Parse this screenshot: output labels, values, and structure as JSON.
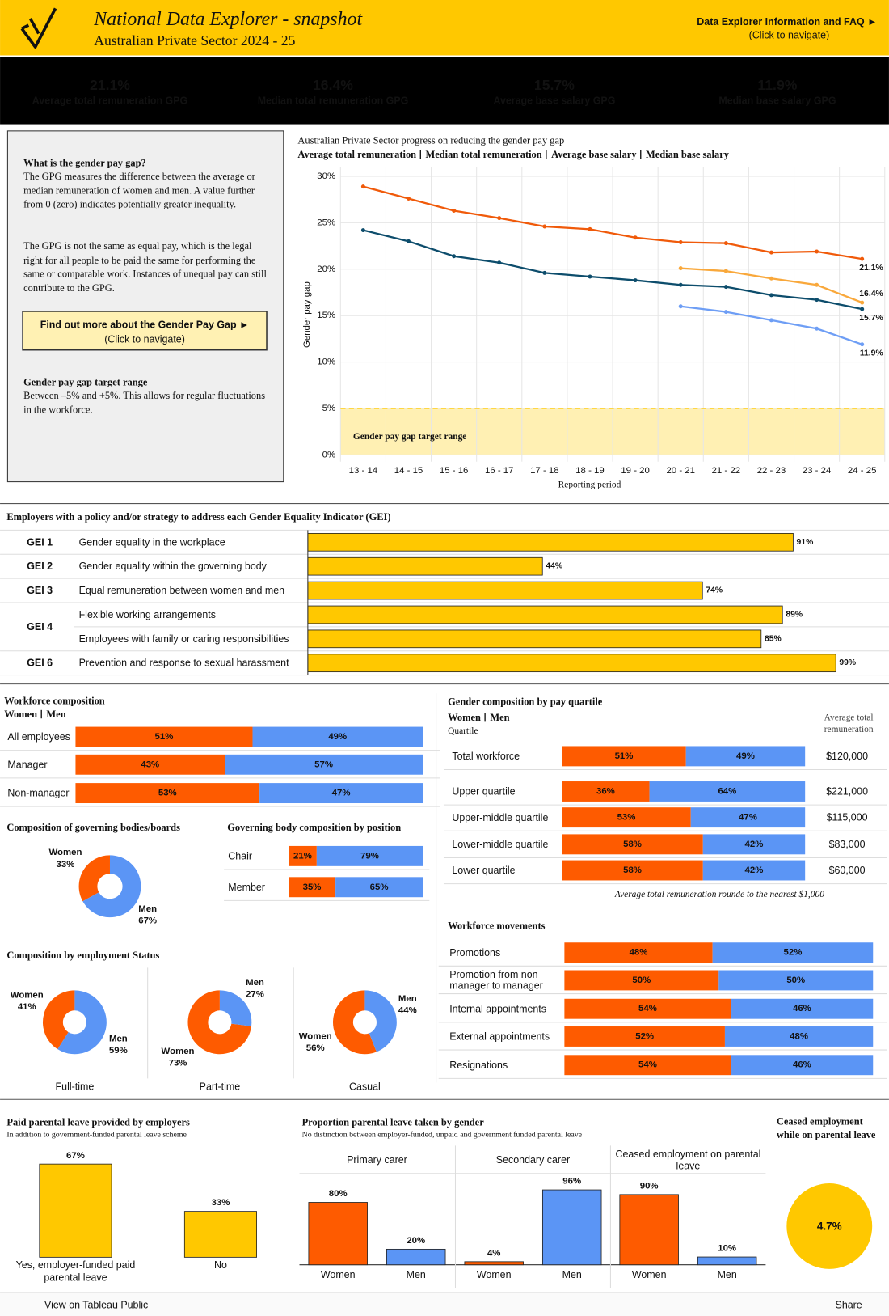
{
  "header": {
    "title": "National Data Explorer - snapshot",
    "subtitle": "Australian Private Sector 2024 - 25",
    "link": "Data Explorer Information and FAQ ►",
    "link_hint": "(Click to navigate)"
  },
  "kpis": [
    {
      "value": "21.1%",
      "label": "Average total remuneration GPG"
    },
    {
      "value": "16.4%",
      "label": "Median total remuneration GPG"
    },
    {
      "value": "15.7%",
      "label": "Average base salary GPG"
    },
    {
      "value": "11.9%",
      "label": "Median base salary GPG"
    }
  ],
  "info": {
    "heading": "What is the gender pay gap?",
    "paragraphs": [
      "The GPG measures the difference between the average or median remuneration of women and men. A value further from 0 (zero) indicates potentially greater inequality.",
      "The GPG is not the same as equal pay, which is the legal right for all people to be paid the same for performing the same or comparable work. Instances of unequal pay can still contribute to the GPG."
    ],
    "button": "Find out more about the Gender Pay Gap ►",
    "button_hint": "(Click to navigate)",
    "target_heading": "Gender pay gap target range",
    "target_text": "Between –5% and +5%. This allows for regular fluctuations in the workforce."
  },
  "chart_data": [
    {
      "type": "line",
      "title": "Australian Private Sector progress on reducing the gender pay gap",
      "categories": [
        "13 - 14",
        "14 - 15",
        "15 - 16",
        "16 - 17",
        "17 - 18",
        "18 - 19",
        "19 - 20",
        "20 - 21",
        "21 - 22",
        "22 - 23",
        "23 - 24",
        "24 - 25"
      ],
      "series": [
        {
          "name": "Average total remuneration",
          "color": "#f05a0a",
          "values": [
            28.9,
            27.6,
            26.3,
            25.5,
            24.6,
            24.3,
            23.4,
            22.9,
            22.8,
            21.8,
            21.9,
            21.1
          ],
          "value_labels": [
            null,
            null,
            null,
            null,
            null,
            null,
            null,
            null,
            null,
            null,
            null,
            "21.1%"
          ]
        },
        {
          "name": "Median total remuneration",
          "color": "#f9a83b",
          "values": [
            null,
            null,
            null,
            null,
            null,
            null,
            null,
            20.1,
            19.8,
            19.0,
            18.3,
            16.4
          ],
          "value_labels": [
            null,
            null,
            null,
            null,
            null,
            null,
            null,
            null,
            null,
            null,
            null,
            "16.4%"
          ]
        },
        {
          "name": "Average base salary",
          "color": "#0d4d6c",
          "values": [
            24.2,
            23.0,
            21.4,
            20.7,
            19.6,
            19.2,
            18.8,
            18.3,
            18.1,
            17.2,
            16.7,
            15.7
          ],
          "value_labels": [
            null,
            null,
            null,
            null,
            null,
            null,
            null,
            null,
            null,
            null,
            null,
            "15.7%"
          ]
        },
        {
          "name": "Median base salary",
          "color": "#6e9ef5",
          "values": [
            null,
            null,
            null,
            null,
            null,
            null,
            null,
            16.0,
            15.4,
            14.5,
            13.6,
            11.9
          ],
          "value_labels": [
            null,
            null,
            null,
            null,
            null,
            null,
            null,
            null,
            null,
            null,
            null,
            "11.9%"
          ]
        }
      ],
      "ylabel": "Gender pay gap",
      "xlabel": "Reporting period",
      "ylim": [
        0,
        31
      ],
      "yticks": [
        {
          "value": 0,
          "label": "0%"
        },
        {
          "value": 5,
          "label": "5%"
        },
        {
          "value": 10,
          "label": "10%"
        },
        {
          "value": 15,
          "label": "15%"
        },
        {
          "value": 20,
          "label": "20%"
        },
        {
          "value": 25,
          "label": "25%"
        },
        {
          "value": 30,
          "label": "30%"
        }
      ],
      "grid": true,
      "target_range": [
        -5,
        5
      ],
      "target_label": "Gender pay gap target range",
      "target_color": "#fff0b3"
    },
    {
      "type": "hbar",
      "title": "Employers with a policy and/or strategy to address each Gender Equality Indicator (GEI)",
      "groups": [
        "GEI 1",
        "GEI 2",
        "GEI 3",
        "GEI 4",
        null,
        "GEI 6"
      ],
      "categories": [
        "Gender equality in the workplace",
        "Gender equality within the governing body",
        "Equal remuneration between women and men",
        "Flexible working arrangements",
        "Employees with family or caring responsibilities",
        "Prevention and response to sexual harassment"
      ],
      "values": [
        91,
        44,
        74,
        89,
        85,
        99
      ],
      "value_labels": [
        "91%",
        "44%",
        "74%",
        "89%",
        "85%",
        "99%"
      ],
      "color": "#ffc800",
      "xlim": [
        0,
        100
      ]
    },
    {
      "type": "stacked-hbar",
      "title": "Workforce composition",
      "categories": [
        "All employees",
        "Manager",
        "Non-manager"
      ],
      "series": [
        {
          "name": "Women",
          "color": "#fe5b00",
          "values": [
            51,
            43,
            53
          ],
          "value_labels": [
            "51%",
            "43%",
            "53%"
          ]
        },
        {
          "name": "Men",
          "color": "#5b95f5",
          "values": [
            49,
            57,
            47
          ],
          "value_labels": [
            "49%",
            "57%",
            "47%"
          ]
        }
      ],
      "xlim": [
        0,
        100
      ]
    },
    {
      "type": "donut",
      "title": "Composition of governing bodies/boards",
      "categories": [
        "Women",
        "Men"
      ],
      "colors": [
        "#fe5b00",
        "#5b95f5"
      ],
      "panels": [
        {
          "values": [
            33,
            67
          ],
          "value_labels": [
            "33%",
            "67%"
          ]
        }
      ]
    },
    {
      "type": "stacked-hbar",
      "title": "Governing body composition by position",
      "categories": [
        "Chair",
        "Member"
      ],
      "series": [
        {
          "name": "Women",
          "color": "#fe5b00",
          "values": [
            21,
            35
          ],
          "value_labels": [
            "21%",
            "35%"
          ]
        },
        {
          "name": "Men",
          "color": "#5b95f5",
          "values": [
            79,
            65
          ],
          "value_labels": [
            "79%",
            "65%"
          ]
        }
      ],
      "xlim": [
        0,
        100
      ]
    },
    {
      "type": "donut",
      "title": "Composition by employment Status",
      "categories": [
        "Women",
        "Men"
      ],
      "colors": [
        "#fe5b00",
        "#5b95f5"
      ],
      "panels": [
        {
          "title": "Full-time",
          "values": [
            41,
            59
          ],
          "value_labels": [
            "41%",
            "59%"
          ]
        },
        {
          "title": "Part-time",
          "values": [
            73,
            27
          ],
          "value_labels": [
            "73%",
            "27%"
          ]
        },
        {
          "title": "Casual",
          "values": [
            56,
            44
          ],
          "value_labels": [
            "56%",
            "44%"
          ]
        }
      ]
    },
    {
      "type": "stacked-hbar",
      "title": "Gender composition by pay quartile",
      "categories": [
        "Total workforce",
        "Upper quartile",
        "Upper-middle quartile",
        "Lower-middle quartile",
        "Lower quartile"
      ],
      "series": [
        {
          "name": "Women",
          "color": "#fe5b00",
          "values": [
            51,
            36,
            53,
            58,
            58
          ],
          "value_labels": [
            "51%",
            "36%",
            "53%",
            "58%",
            "58%"
          ]
        },
        {
          "name": "Men",
          "color": "#5b95f5",
          "values": [
            49,
            64,
            47,
            42,
            42
          ],
          "value_labels": [
            "49%",
            "64%",
            "47%",
            "42%",
            "42%"
          ]
        }
      ],
      "xlim": [
        0,
        100
      ],
      "category_header": "Quartile",
      "extra_header": "Average total remuneration",
      "extra_values": [
        120000,
        221000,
        115000,
        83000,
        60000
      ],
      "extra_labels": [
        "$120,000",
        "$221,000",
        "$115,000",
        "$83,000",
        "$60,000"
      ],
      "note": "Average total remuneration rounde to the nearest $1,000"
    },
    {
      "type": "stacked-hbar",
      "title": "Workforce movements",
      "categories": [
        "Promotions",
        "Promotion from non-manager to manager",
        "Internal appointments",
        "External appointments",
        "Resignations"
      ],
      "series": [
        {
          "name": "Women",
          "color": "#fe5b00",
          "values": [
            48,
            50,
            54,
            52,
            54
          ],
          "value_labels": [
            "48%",
            "50%",
            "54%",
            "52%",
            "54%"
          ]
        },
        {
          "name": "Men",
          "color": "#5b95f5",
          "values": [
            52,
            50,
            46,
            48,
            46
          ],
          "value_labels": [
            "52%",
            "50%",
            "46%",
            "48%",
            "46%"
          ]
        }
      ],
      "xlim": [
        0,
        100
      ]
    },
    {
      "type": "bar",
      "title": "Paid parental leave provided by employers",
      "subtitle": "In addition to government-funded parental leave scheme",
      "categories": [
        "Yes, employer-funded paid parental leave",
        "No"
      ],
      "values": [
        67,
        33
      ],
      "value_labels": [
        "67%",
        "33%"
      ],
      "color": "#ffc800",
      "ylim": [
        0,
        70
      ]
    },
    {
      "type": "bar-panels",
      "title": "Proportion parental leave taken by gender",
      "subtitle": "No distinction between employer-funded, unpaid and government funded parental leave",
      "categories": [
        "Women",
        "Men"
      ],
      "colors": [
        "#fe5b00",
        "#5b95f5"
      ],
      "ylim": [
        0,
        100
      ],
      "panels": [
        {
          "title": "Primary carer",
          "values": [
            80,
            20
          ],
          "value_labels": [
            "80%",
            "20%"
          ]
        },
        {
          "title": "Secondary carer",
          "values": [
            4,
            96
          ],
          "value_labels": [
            "4%",
            "96%"
          ]
        },
        {
          "title": "Ceased employment on parental leave",
          "values": [
            90,
            10
          ],
          "value_labels": [
            "90%",
            "10%"
          ]
        }
      ]
    },
    {
      "type": "kpi-circle",
      "title": "Ceased employment while on parental leave",
      "values": [
        4.7
      ],
      "value_labels": [
        "4.7%"
      ],
      "color": "#ffc800"
    }
  ],
  "footer": {
    "tableau": "View on Tableau Public",
    "share": "Share"
  }
}
